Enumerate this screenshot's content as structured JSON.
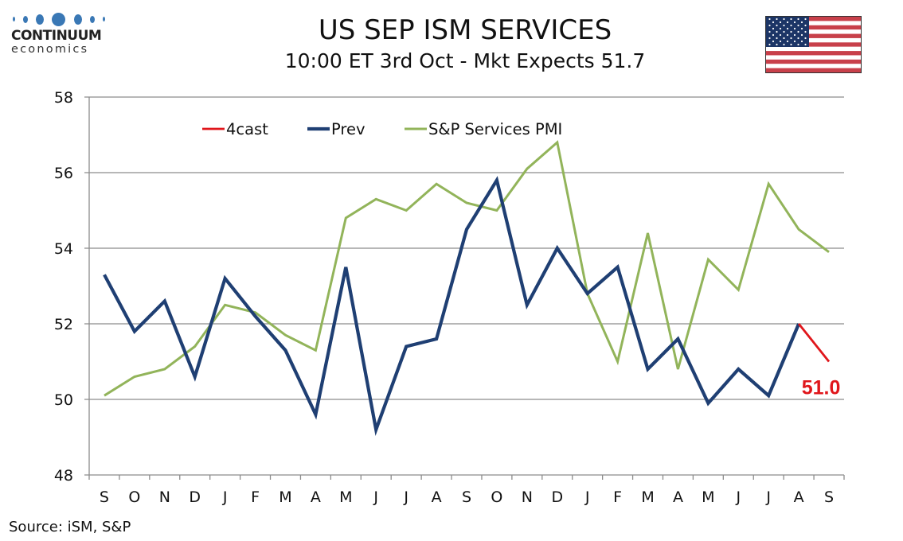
{
  "header": {
    "logo_name": "CONTINUUM",
    "logo_sub": "economics",
    "title": "US SEP ISM SERVICES",
    "subtitle": "10:00 ET 3rd Oct - Mkt Expects 51.7",
    "flag_icon": "us-flag-icon"
  },
  "source": "Source: iSM, S&P",
  "colors": {
    "prev": "#1f3f73",
    "forecast": "#e0161b",
    "sp_pmi": "#92b45a",
    "grid": "#8c8c8c",
    "logo_blue": "#3a78b5"
  },
  "chart_data": {
    "type": "line",
    "title": "US SEP ISM SERVICES",
    "subtitle": "10:00 ET 3rd Oct - Mkt Expects 51.7",
    "xlabel": "",
    "ylabel": "",
    "categories": [
      "S",
      "O",
      "N",
      "D",
      "J",
      "F",
      "M",
      "A",
      "M",
      "J",
      "J",
      "A",
      "S",
      "O",
      "N",
      "D",
      "J",
      "F",
      "M",
      "A",
      "M",
      "J",
      "J",
      "A",
      "S"
    ],
    "ylim": [
      48,
      58
    ],
    "yticks": [
      48,
      50,
      52,
      54,
      56,
      58
    ],
    "grid": true,
    "legend_position": "top-left",
    "series": [
      {
        "name": "4cast",
        "key": "forecast",
        "values": [
          null,
          null,
          null,
          null,
          null,
          null,
          null,
          null,
          null,
          null,
          null,
          null,
          null,
          null,
          null,
          null,
          null,
          null,
          null,
          null,
          null,
          null,
          null,
          52.0,
          51.0
        ]
      },
      {
        "name": "Prev",
        "key": "prev",
        "values": [
          53.3,
          51.8,
          52.6,
          50.6,
          53.2,
          52.2,
          51.3,
          49.6,
          53.5,
          49.2,
          51.4,
          51.6,
          54.5,
          55.8,
          52.5,
          54.0,
          52.8,
          53.5,
          50.8,
          51.6,
          49.9,
          50.8,
          50.1,
          52.0,
          null
        ]
      },
      {
        "name": "S&P Services PMI",
        "key": "sp_pmi",
        "values": [
          50.1,
          50.6,
          50.8,
          51.4,
          52.5,
          52.3,
          51.7,
          51.3,
          54.8,
          55.3,
          55.0,
          55.7,
          55.2,
          55.0,
          56.1,
          56.8,
          52.8,
          51.0,
          54.4,
          50.8,
          53.7,
          52.9,
          55.7,
          54.5,
          53.9
        ]
      }
    ],
    "annotations": [
      {
        "text": "51.0",
        "series": "4cast",
        "category_index": 24,
        "color": "#e0161b"
      }
    ]
  }
}
